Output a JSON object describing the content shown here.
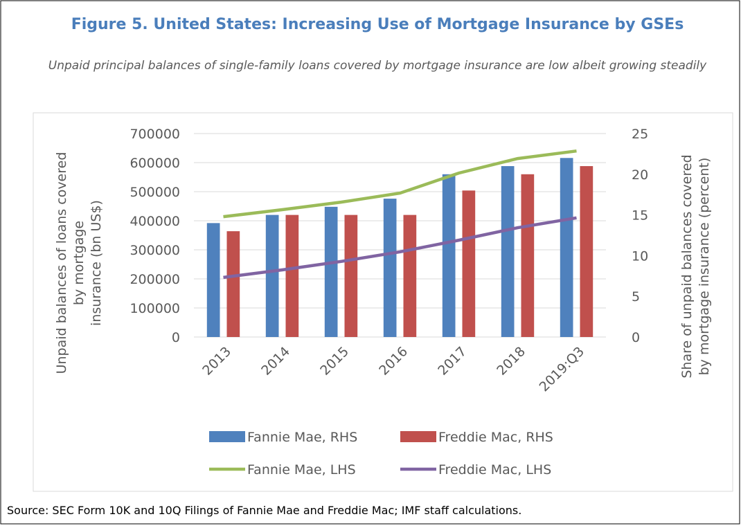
{
  "chart_data": {
    "type": "bar",
    "title": "Figure 5. United States: Increasing Use of Mortgage Insurance by GSEs",
    "subtitle": "Unpaid principal balances of single-family loans covered by mortgage insurance are low albeit growing steadily",
    "y_label": "Unpaid balances of loans covered by mortgage insurance (bn US$)",
    "y2_label": "Share of unpaid balances covered by mortgage insurance (percent)",
    "source": "Source: SEC Form 10K and 10Q Filings of Fannie Mae and Freddie Mac; IMF staff calculations.",
    "categories": [
      "2013",
      "2014",
      "2015",
      "2016",
      "2017",
      "2018",
      "2019:Q3"
    ],
    "ylim": [
      0,
      700000
    ],
    "yticks": [
      0,
      100000,
      200000,
      300000,
      400000,
      500000,
      600000,
      700000
    ],
    "y2lim": [
      0,
      25
    ],
    "y2ticks": [
      0,
      5,
      10,
      15,
      20,
      25
    ],
    "grid": true,
    "legend": "bottom",
    "series": [
      {
        "name": "Fannie Mae, RHS",
        "type": "bar",
        "axis": "y2",
        "color": "#4f81bd",
        "values": [
          14,
          15,
          16,
          17,
          20,
          21,
          22
        ]
      },
      {
        "name": "Freddie Mac, RHS",
        "type": "bar",
        "axis": "y2",
        "color": "#c0504d",
        "values": [
          13,
          15,
          15,
          15,
          18,
          20,
          21
        ]
      },
      {
        "name": "Fannie Mae, LHS",
        "type": "line",
        "color": "#9bbb59",
        "values": [
          414000,
          438000,
          464000,
          495000,
          564000,
          614000,
          640000
        ]
      },
      {
        "name": "Freddie Mac, LHS",
        "type": "line",
        "color": "#8064a2",
        "values": [
          205000,
          231000,
          260000,
          293000,
          333000,
          376000,
          410000
        ]
      }
    ]
  }
}
